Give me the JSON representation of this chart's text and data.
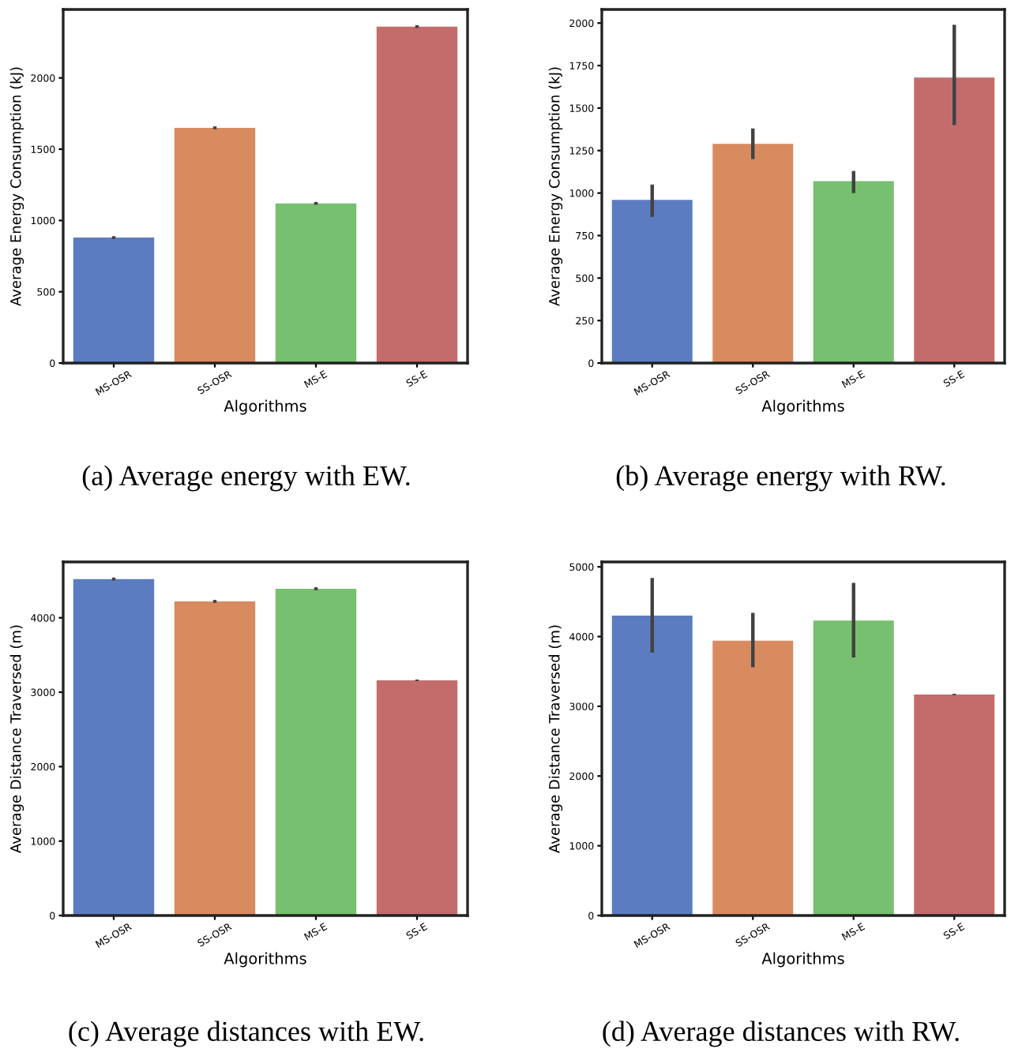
{
  "chart_data": [
    {
      "type": "bar",
      "xlabel": "Algorithms",
      "ylabel": "Average Energy Consumption (kJ)",
      "categories": [
        "MS-OSR",
        "SS-OSR",
        "MS-E",
        "SS-E"
      ],
      "values": [
        880,
        1650,
        1120,
        2360
      ],
      "errors": [
        10,
        10,
        10,
        10
      ],
      "colors": [
        "#5b7cc0",
        "#d98b60",
        "#77c06f",
        "#c46c6c"
      ],
      "ylim": [
        0,
        2480
      ],
      "yticks": [
        0,
        500,
        1000,
        1500,
        2000
      ],
      "grid": false,
      "annotations": [
        "(a) Average energy with EW."
      ]
    },
    {
      "type": "bar",
      "xlabel": "Algorithms",
      "ylabel": "Average Energy Consumption (kJ)",
      "categories": [
        "MS-OSR",
        "SS-OSR",
        "MS-E",
        "SS-E"
      ],
      "values": [
        960,
        1290,
        1070,
        1680
      ],
      "errors": [
        [
          860,
          1050
        ],
        [
          1200,
          1380
        ],
        [
          1000,
          1130
        ],
        [
          1400,
          1990
        ]
      ],
      "colors": [
        "#5b7cc0",
        "#d98b60",
        "#77c06f",
        "#c46c6c"
      ],
      "ylim": [
        0,
        2080
      ],
      "yticks": [
        0,
        250,
        500,
        750,
        1000,
        1250,
        1500,
        1750,
        2000
      ],
      "grid": false,
      "annotations": [
        "(b) Average energy with RW."
      ]
    },
    {
      "type": "bar",
      "xlabel": "Algorithms",
      "ylabel": "Average Distance Traversed (m)",
      "categories": [
        "MS-OSR",
        "SS-OSR",
        "MS-E",
        "SS-E"
      ],
      "values": [
        4520,
        4220,
        4390,
        3160
      ],
      "errors": [
        20,
        20,
        20,
        10
      ],
      "colors": [
        "#5b7cc0",
        "#d98b60",
        "#77c06f",
        "#c46c6c"
      ],
      "ylim": [
        0,
        4750
      ],
      "yticks": [
        0,
        1000,
        2000,
        3000,
        4000
      ],
      "grid": false,
      "annotations": [
        "(c) Average distances with EW."
      ]
    },
    {
      "type": "bar",
      "xlabel": "Algorithms",
      "ylabel": "Average Distance Traversed (m)",
      "categories": [
        "MS-OSR",
        "SS-OSR",
        "MS-E",
        "SS-E"
      ],
      "values": [
        4300,
        3940,
        4230,
        3170
      ],
      "errors": [
        [
          3770,
          4840
        ],
        [
          3560,
          4340
        ],
        [
          3700,
          4770
        ],
        10
      ],
      "colors": [
        "#5b7cc0",
        "#d98b60",
        "#77c06f",
        "#c46c6c"
      ],
      "ylim": [
        0,
        5070
      ],
      "yticks": [
        0,
        1000,
        2000,
        3000,
        4000,
        5000
      ],
      "grid": false,
      "annotations": [
        "(d) Average distances with RW."
      ]
    }
  ]
}
